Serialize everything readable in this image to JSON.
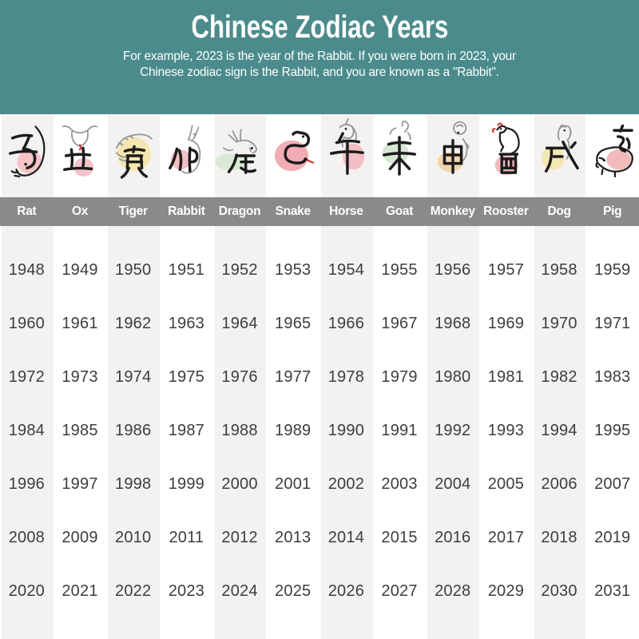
{
  "banner": {
    "title": "Chinese Zodiac Years",
    "subtitle_lines": [
      "For example, 2023 is the year of the Rabbit. If you were born in 2023, your",
      "Chinese zodiac sign is the Rabbit, and you are known as a \"Rabbit\"."
    ],
    "background_color": "#4b8b8c",
    "text_color": "#ffffff"
  },
  "table": {
    "header_background": "#8a8a8a",
    "header_text_color": "#ffffff",
    "stripe_color": "#f3f2f0",
    "year_text_color": "#3d3d3d",
    "ink_color": "#1c1c1c",
    "lineart_color": "#8f9595",
    "accent_red": "#d8332a",
    "columns": [
      {
        "name": "Rat",
        "glyph": "子",
        "icon": "rat-icon",
        "blob_color": "#f4bcbe",
        "striped": true,
        "years": [
          1948,
          1960,
          1972,
          1984,
          1996,
          2008,
          2020
        ]
      },
      {
        "name": "Ox",
        "glyph": "丑",
        "icon": "ox-icon",
        "blob_color": "#f2b9c2",
        "striped": false,
        "years": [
          1949,
          1961,
          1973,
          1985,
          1997,
          2009,
          2021
        ]
      },
      {
        "name": "Tiger",
        "glyph": "寅",
        "icon": "tiger-icon",
        "blob_color": "#f4e4a4",
        "striped": true,
        "years": [
          1950,
          1962,
          1974,
          1986,
          1998,
          2010,
          2022
        ]
      },
      {
        "name": "Rabbit",
        "glyph": "卯",
        "icon": "rabbit-icon",
        "blob_color": "#f2b4ba",
        "striped": false,
        "years": [
          1951,
          1963,
          1975,
          1987,
          1999,
          2011,
          2023
        ]
      },
      {
        "name": "Dragon",
        "glyph": "辰",
        "icon": "dragon-icon",
        "blob_color": "#d5e6d1",
        "striped": true,
        "years": [
          1952,
          1964,
          1976,
          1988,
          2000,
          2012,
          2024
        ]
      },
      {
        "name": "Snake",
        "glyph": "巳",
        "icon": "snake-icon",
        "blob_color": "#ee9fa6",
        "striped": false,
        "years": [
          1953,
          1965,
          1977,
          1989,
          2001,
          2013,
          2025
        ]
      },
      {
        "name": "Horse",
        "glyph": "午",
        "icon": "horse-icon",
        "blob_color": "#f2b6bc",
        "striped": true,
        "years": [
          1954,
          1966,
          1978,
          1990,
          2002,
          2014,
          2026
        ]
      },
      {
        "name": "Goat",
        "glyph": "未",
        "icon": "goat-icon",
        "blob_color": "#cfe3cc",
        "striped": false,
        "years": [
          1955,
          1967,
          1979,
          1991,
          2003,
          2015,
          2027
        ]
      },
      {
        "name": "Monkey",
        "glyph": "申",
        "icon": "monkey-icon",
        "blob_color": "#eecf9f",
        "striped": true,
        "years": [
          1956,
          1968,
          1980,
          1992,
          2004,
          2016,
          2028
        ]
      },
      {
        "name": "Rooster",
        "glyph": "酉",
        "icon": "rooster-icon",
        "blob_color": "#f3afb8",
        "striped": false,
        "years": [
          1957,
          1969,
          1981,
          1993,
          2005,
          2017,
          2029
        ]
      },
      {
        "name": "Dog",
        "glyph": "戌",
        "icon": "dog-icon",
        "blob_color": "#f4e5a6",
        "striped": true,
        "years": [
          1958,
          1970,
          1982,
          1994,
          2006,
          2018,
          2030
        ]
      },
      {
        "name": "Pig",
        "glyph": "亥",
        "icon": "pig-icon",
        "blob_color": "#f0aeae",
        "striped": false,
        "years": [
          1959,
          1971,
          1983,
          1995,
          2007,
          2019,
          2031
        ]
      }
    ]
  }
}
